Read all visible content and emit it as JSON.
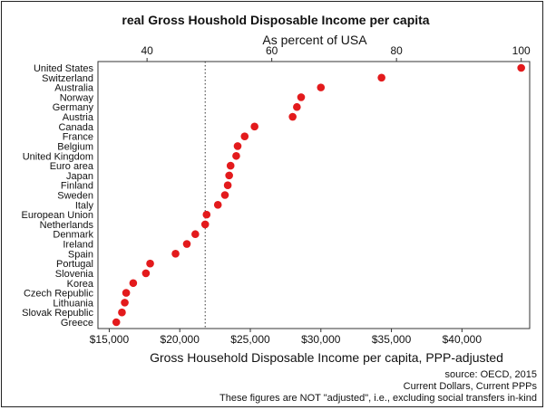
{
  "chart_data": {
    "type": "scatter",
    "title": "real Gross Houshold Disposable Income per capita",
    "top_axis_label": "As percent of USA",
    "xlabel": "Gross Household Disposable Income per capita, PPP-adjusted",
    "xlim": [
      14200,
      44800
    ],
    "x_ticks": [
      15000,
      20000,
      25000,
      30000,
      35000,
      40000
    ],
    "x_tick_labels": [
      "$15,000",
      "$20,000",
      "$25,000",
      "$30,000",
      "$35,000",
      "$40,000"
    ],
    "top_ticks": [
      40,
      60,
      80,
      100
    ],
    "top_tick_labels": [
      "40",
      "60",
      "80",
      "100"
    ],
    "reference_line_x": 21800,
    "grid": false,
    "point_color": "#e31a1c",
    "categories": [
      "United States",
      "Switzerland",
      "Australia",
      "Norway",
      "Germany",
      "Austria",
      "Canada",
      "France",
      "Belgium",
      "United Kingdom",
      "Euro area",
      "Japan",
      "Finland",
      "Sweden",
      "Italy",
      "European Union",
      "Netherlands",
      "Denmark",
      "Ireland",
      "Spain",
      "Portugal",
      "Slovenia",
      "Korea",
      "Czech Republic",
      "Lithuania",
      "Slovak Republic",
      "Greece"
    ],
    "values": [
      44200,
      34300,
      30000,
      28600,
      28300,
      28000,
      25300,
      24600,
      24100,
      24000,
      23600,
      23500,
      23400,
      23200,
      22700,
      21900,
      21800,
      21100,
      20500,
      19700,
      17900,
      17600,
      16700,
      16200,
      16100,
      15900,
      15500
    ],
    "notes": [
      "source: OECD, 2015",
      "Current Dollars, Current PPPs",
      "These figures are NOT \"adjusted\", i.e., excluding social transfers in-kind"
    ]
  }
}
